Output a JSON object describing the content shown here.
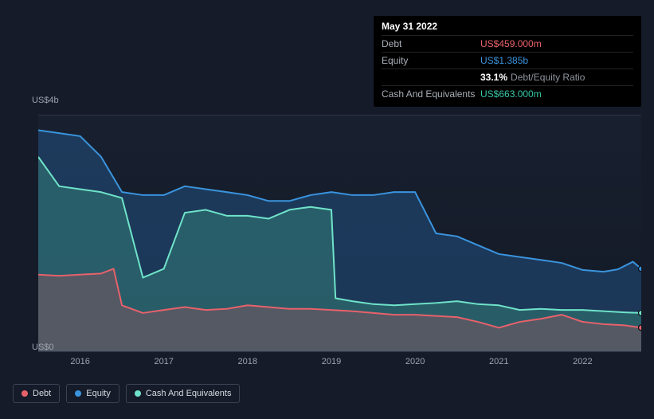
{
  "tooltip": {
    "date": "May 31 2022",
    "rows": [
      {
        "label": "Debt",
        "value": "US$459.000m",
        "color": "#e8616a"
      },
      {
        "label": "Equity",
        "value": "US$1.385b",
        "color": "#3a94dd"
      },
      {
        "label": "",
        "pct": "33.1%",
        "inlineLabel": "Debt/Equity Ratio"
      },
      {
        "label": "Cash And Equivalents",
        "value": "US$663.000m",
        "color": "#36c6a5"
      }
    ]
  },
  "chart": {
    "type": "area",
    "y_top_label": "US$4b",
    "y_bottom_label": "US$0",
    "y_max": 4.0,
    "y_min": 0,
    "x_labels": [
      "2016",
      "2017",
      "2018",
      "2019",
      "2020",
      "2021",
      "2022"
    ],
    "x_domain": [
      2015.5,
      2022.7
    ],
    "background": "#151b29",
    "plot_gradient_top": "#182030",
    "plot_gradient_bottom": "#131925",
    "grid_color": "#2b3446",
    "series": [
      {
        "name": "Equity",
        "stroke": "#3a94dd",
        "fill": "rgba(35,80,130,0.55)",
        "line_width": 2,
        "data": [
          [
            2015.5,
            3.75
          ],
          [
            2015.75,
            3.7
          ],
          [
            2016.0,
            3.65
          ],
          [
            2016.25,
            3.3
          ],
          [
            2016.5,
            2.7
          ],
          [
            2016.75,
            2.65
          ],
          [
            2017.0,
            2.65
          ],
          [
            2017.25,
            2.8
          ],
          [
            2017.5,
            2.75
          ],
          [
            2017.75,
            2.7
          ],
          [
            2018.0,
            2.65
          ],
          [
            2018.25,
            2.55
          ],
          [
            2018.5,
            2.55
          ],
          [
            2018.75,
            2.65
          ],
          [
            2019.0,
            2.7
          ],
          [
            2019.25,
            2.65
          ],
          [
            2019.5,
            2.65
          ],
          [
            2019.75,
            2.7
          ],
          [
            2020.0,
            2.7
          ],
          [
            2020.25,
            2.0
          ],
          [
            2020.5,
            1.95
          ],
          [
            2020.75,
            1.8
          ],
          [
            2021.0,
            1.65
          ],
          [
            2021.25,
            1.6
          ],
          [
            2021.5,
            1.55
          ],
          [
            2021.75,
            1.5
          ],
          [
            2022.0,
            1.38
          ],
          [
            2022.25,
            1.35
          ],
          [
            2022.42,
            1.39
          ],
          [
            2022.6,
            1.52
          ],
          [
            2022.7,
            1.4
          ]
        ]
      },
      {
        "name": "Cash And Equivalents",
        "stroke": "#6fe3c9",
        "fill": "rgba(60,150,130,0.40)",
        "line_width": 2,
        "data": [
          [
            2015.5,
            3.3
          ],
          [
            2015.75,
            2.8
          ],
          [
            2016.0,
            2.75
          ],
          [
            2016.25,
            2.7
          ],
          [
            2016.5,
            2.6
          ],
          [
            2016.75,
            1.25
          ],
          [
            2017.0,
            1.4
          ],
          [
            2017.25,
            2.35
          ],
          [
            2017.5,
            2.4
          ],
          [
            2017.75,
            2.3
          ],
          [
            2018.0,
            2.3
          ],
          [
            2018.25,
            2.25
          ],
          [
            2018.5,
            2.4
          ],
          [
            2018.75,
            2.45
          ],
          [
            2019.0,
            2.4
          ],
          [
            2019.05,
            0.9
          ],
          [
            2019.25,
            0.85
          ],
          [
            2019.5,
            0.8
          ],
          [
            2019.75,
            0.78
          ],
          [
            2020.0,
            0.8
          ],
          [
            2020.25,
            0.82
          ],
          [
            2020.5,
            0.85
          ],
          [
            2020.75,
            0.8
          ],
          [
            2021.0,
            0.78
          ],
          [
            2021.25,
            0.7
          ],
          [
            2021.5,
            0.72
          ],
          [
            2021.75,
            0.7
          ],
          [
            2022.0,
            0.7
          ],
          [
            2022.25,
            0.68
          ],
          [
            2022.5,
            0.66
          ],
          [
            2022.7,
            0.65
          ]
        ]
      },
      {
        "name": "Debt",
        "stroke": "#e8616a",
        "fill": "rgba(200,80,90,0.28)",
        "line_width": 2,
        "data": [
          [
            2015.5,
            1.3
          ],
          [
            2015.75,
            1.28
          ],
          [
            2016.0,
            1.3
          ],
          [
            2016.25,
            1.32
          ],
          [
            2016.4,
            1.4
          ],
          [
            2016.5,
            0.78
          ],
          [
            2016.75,
            0.65
          ],
          [
            2017.0,
            0.7
          ],
          [
            2017.25,
            0.75
          ],
          [
            2017.5,
            0.7
          ],
          [
            2017.75,
            0.72
          ],
          [
            2018.0,
            0.78
          ],
          [
            2018.25,
            0.75
          ],
          [
            2018.5,
            0.72
          ],
          [
            2018.75,
            0.72
          ],
          [
            2019.0,
            0.7
          ],
          [
            2019.25,
            0.68
          ],
          [
            2019.5,
            0.65
          ],
          [
            2019.75,
            0.62
          ],
          [
            2020.0,
            0.62
          ],
          [
            2020.25,
            0.6
          ],
          [
            2020.5,
            0.58
          ],
          [
            2020.75,
            0.5
          ],
          [
            2021.0,
            0.4
          ],
          [
            2021.25,
            0.5
          ],
          [
            2021.5,
            0.55
          ],
          [
            2021.75,
            0.62
          ],
          [
            2022.0,
            0.5
          ],
          [
            2022.25,
            0.46
          ],
          [
            2022.5,
            0.44
          ],
          [
            2022.7,
            0.4
          ]
        ]
      }
    ],
    "legend": [
      {
        "label": "Debt",
        "color": "#e8616a"
      },
      {
        "label": "Equity",
        "color": "#3a94dd"
      },
      {
        "label": "Cash And Equivalents",
        "color": "#6fe3c9"
      }
    ]
  }
}
